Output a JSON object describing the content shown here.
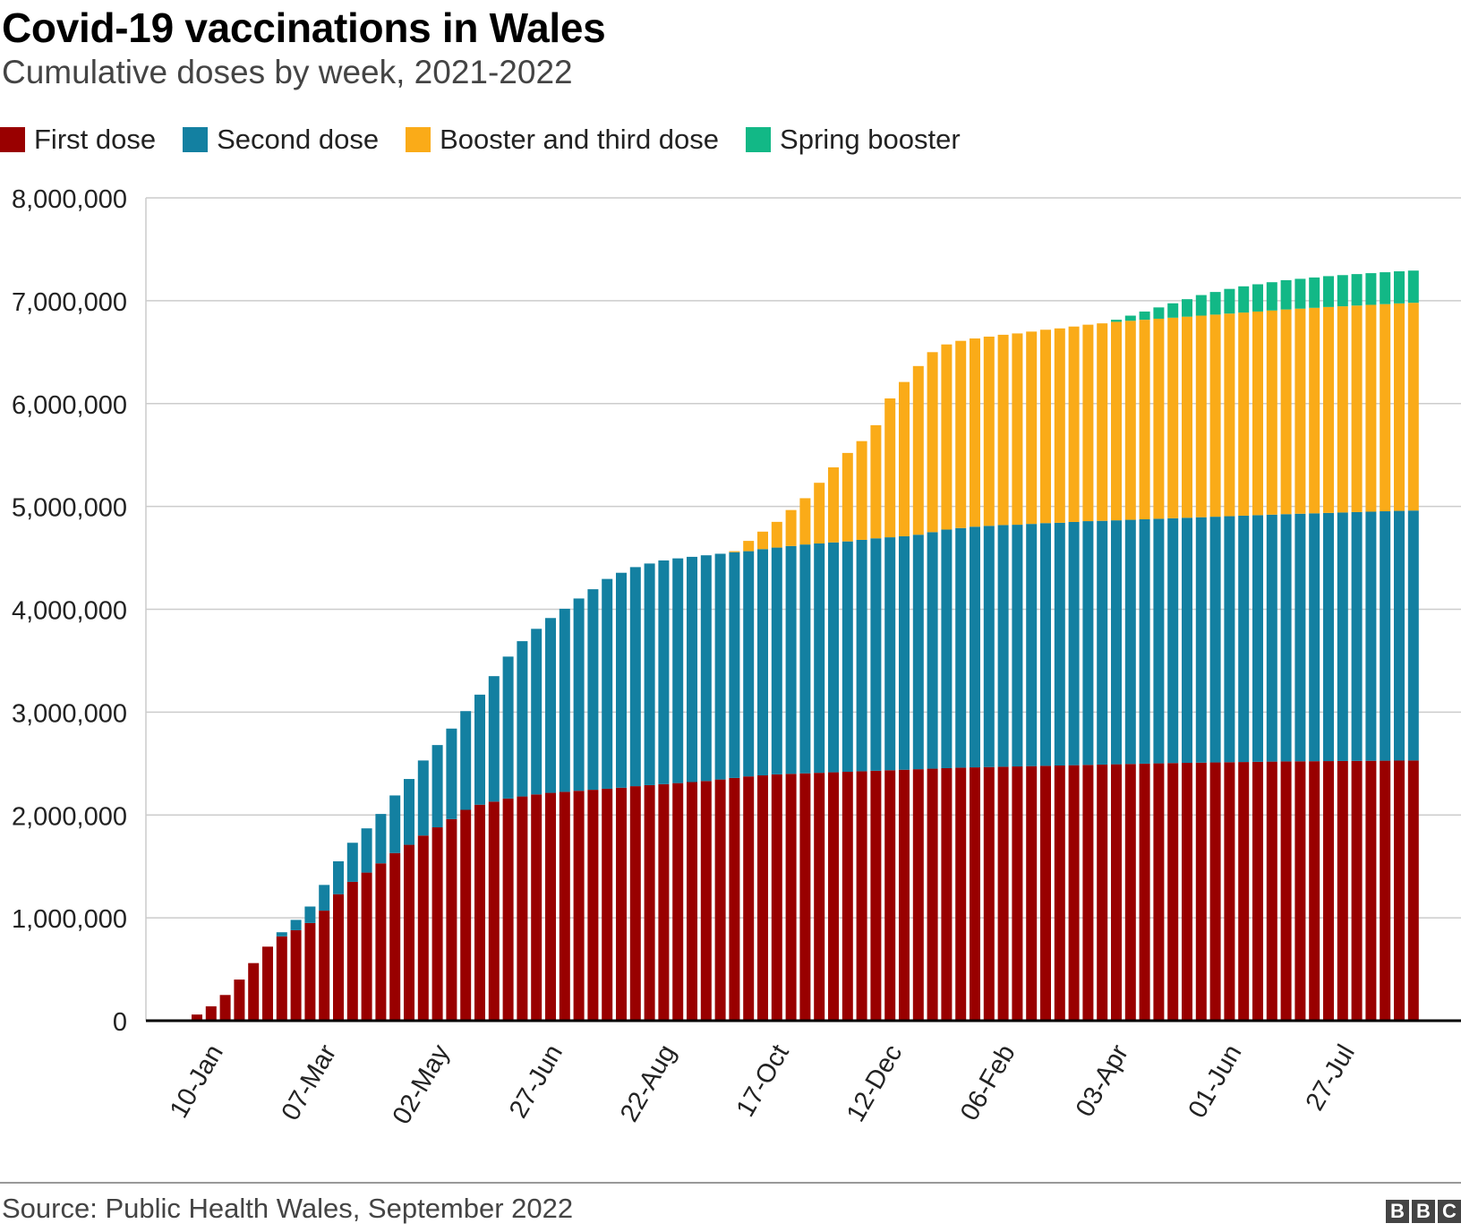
{
  "header": {
    "title": "Covid-19 vaccinations in Wales",
    "subtitle": "Cumulative doses by week, 2021-2022"
  },
  "footer": {
    "source": "Source: Public Health Wales, September 2022",
    "logo_letters": [
      "B",
      "B",
      "C"
    ]
  },
  "chart_data": {
    "type": "bar",
    "stacked": true,
    "title": "Covid-19 vaccinations in Wales",
    "subtitle": "Cumulative doses by week, 2021-2022",
    "legend_position": "top-left",
    "grid": true,
    "ylim": [
      0,
      8000000
    ],
    "y_ticks": [
      0,
      1000000,
      2000000,
      3000000,
      4000000,
      5000000,
      6000000,
      7000000,
      8000000
    ],
    "y_tick_labels": [
      "0",
      "1,000,000",
      "2,000,000",
      "3,000,000",
      "4,000,000",
      "5,000,000",
      "6,000,000",
      "7,000,000",
      "8,000,000"
    ],
    "x_tick_labels": [
      "10-Jan",
      "07-Mar",
      "02-May",
      "27-Jun",
      "22-Aug",
      "17-Oct",
      "12-Dec",
      "06-Feb",
      "03-Apr",
      "01-Jun",
      "27-Jul"
    ],
    "x_tick_positions": [
      1,
      9,
      17,
      25,
      33,
      41,
      49,
      57,
      65,
      73,
      81
    ],
    "n_bars": 87,
    "series": [
      {
        "name": "First dose",
        "color": "#990000",
        "values": [
          60000,
          140000,
          250000,
          400000,
          560000,
          720000,
          820000,
          880000,
          950000,
          1070000,
          1230000,
          1350000,
          1440000,
          1530000,
          1630000,
          1710000,
          1800000,
          1880000,
          1960000,
          2050000,
          2100000,
          2130000,
          2160000,
          2180000,
          2200000,
          2215000,
          2225000,
          2235000,
          2245000,
          2255000,
          2265000,
          2280000,
          2290000,
          2300000,
          2310000,
          2320000,
          2330000,
          2345000,
          2360000,
          2375000,
          2385000,
          2395000,
          2400000,
          2405000,
          2410000,
          2415000,
          2420000,
          2425000,
          2430000,
          2435000,
          2440000,
          2445000,
          2450000,
          2455000,
          2460000,
          2463000,
          2466000,
          2469000,
          2472000,
          2475000,
          2478000,
          2481000,
          2484000,
          2487000,
          2490000,
          2493000,
          2496000,
          2499000,
          2502000,
          2505000,
          2507000,
          2509000,
          2511000,
          2513000,
          2515000,
          2517000,
          2519000,
          2521000,
          2522000,
          2523000,
          2524000,
          2525000,
          2526000,
          2527000,
          2528000,
          2529000,
          2530000
        ]
      },
      {
        "name": "Second dose",
        "color": "#1380A1",
        "values": [
          0,
          0,
          0,
          0,
          0,
          0,
          40000,
          100000,
          160000,
          250000,
          320000,
          380000,
          430000,
          480000,
          560000,
          640000,
          730000,
          800000,
          880000,
          960000,
          1070000,
          1220000,
          1380000,
          1510000,
          1610000,
          1700000,
          1780000,
          1870000,
          1950000,
          2040000,
          2090000,
          2130000,
          2155000,
          2175000,
          2185000,
          2190000,
          2195000,
          2195000,
          2195000,
          2190000,
          2200000,
          2205000,
          2215000,
          2225000,
          2230000,
          2235000,
          2240000,
          2250000,
          2260000,
          2265000,
          2270000,
          2280000,
          2300000,
          2320000,
          2330000,
          2340000,
          2345000,
          2350000,
          2350000,
          2355000,
          2360000,
          2360000,
          2365000,
          2370000,
          2370000,
          2372000,
          2374000,
          2376000,
          2378000,
          2380000,
          2383000,
          2386000,
          2389000,
          2392000,
          2395000,
          2398000,
          2401000,
          2404000,
          2407000,
          2410000,
          2413000,
          2416000,
          2419000,
          2422000,
          2425000,
          2428000,
          2430000
        ]
      },
      {
        "name": "Booster and third dose",
        "color": "#FAAB18",
        "values": [
          0,
          0,
          0,
          0,
          0,
          0,
          0,
          0,
          0,
          0,
          0,
          0,
          0,
          0,
          0,
          0,
          0,
          0,
          0,
          0,
          0,
          0,
          0,
          0,
          0,
          0,
          0,
          0,
          0,
          0,
          0,
          0,
          0,
          0,
          0,
          0,
          0,
          0,
          10000,
          100000,
          170000,
          250000,
          350000,
          450000,
          590000,
          730000,
          860000,
          960000,
          1100000,
          1350000,
          1500000,
          1640000,
          1750000,
          1800000,
          1820000,
          1830000,
          1840000,
          1850000,
          1860000,
          1870000,
          1880000,
          1890000,
          1900000,
          1910000,
          1920000,
          1930000,
          1935000,
          1940000,
          1945000,
          1950000,
          1955000,
          1960000,
          1965000,
          1970000,
          1975000,
          1980000,
          1985000,
          1990000,
          1994000,
          1998000,
          2002000,
          2005000,
          2008000,
          2011000,
          2014000,
          2017000,
          2020000
        ]
      },
      {
        "name": "Spring booster",
        "color": "#12B886",
        "values": [
          0,
          0,
          0,
          0,
          0,
          0,
          0,
          0,
          0,
          0,
          0,
          0,
          0,
          0,
          0,
          0,
          0,
          0,
          0,
          0,
          0,
          0,
          0,
          0,
          0,
          0,
          0,
          0,
          0,
          0,
          0,
          0,
          0,
          0,
          0,
          0,
          0,
          0,
          0,
          0,
          0,
          0,
          0,
          0,
          0,
          0,
          0,
          0,
          0,
          0,
          0,
          0,
          0,
          0,
          0,
          0,
          0,
          0,
          0,
          0,
          0,
          0,
          0,
          0,
          0,
          20000,
          50000,
          80000,
          110000,
          140000,
          170000,
          200000,
          220000,
          240000,
          255000,
          265000,
          275000,
          285000,
          290000,
          295000,
          300000,
          303000,
          306000,
          308000,
          310000,
          312000,
          313000
        ]
      }
    ]
  }
}
